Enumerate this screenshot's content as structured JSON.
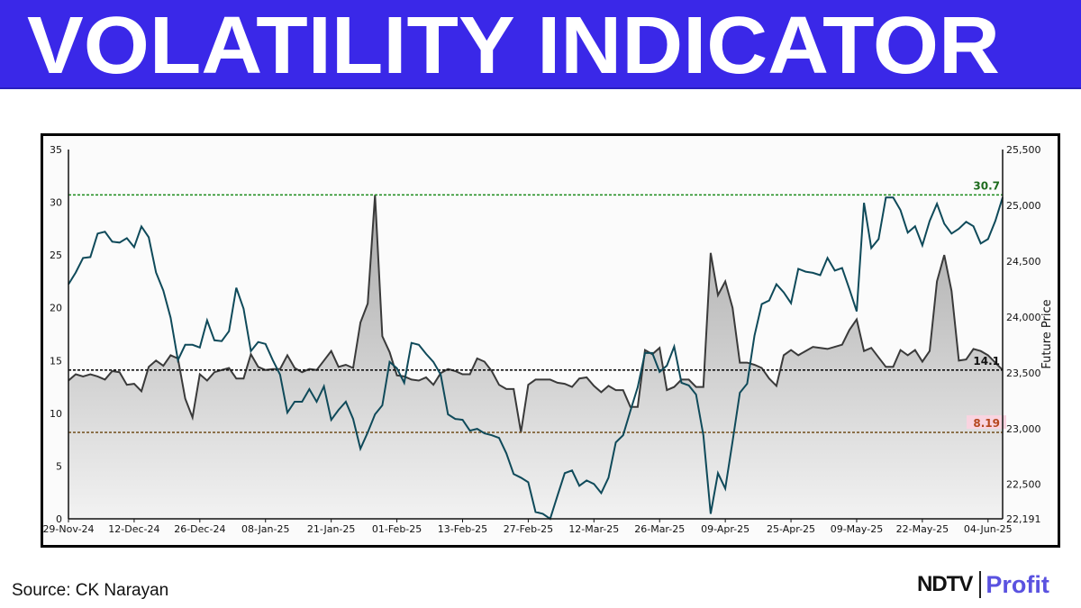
{
  "header": {
    "title": "VOLATILITY INDICATOR",
    "background": "#3a28e8"
  },
  "footer": {
    "source": "Source: CK Narayan",
    "logo": {
      "ndtv": "NDTV",
      "profit": "Profit"
    }
  },
  "chart_data": {
    "type": "line",
    "title": "",
    "xlabel": "",
    "ylabel_left": "",
    "ylabel_right": "Future Price",
    "x_ticks": [
      "29-Nov-24",
      "12-Dec-24",
      "26-Dec-24",
      "08-Jan-25",
      "21-Jan-25",
      "01-Feb-25",
      "13-Feb-25",
      "27-Feb-25",
      "12-Mar-25",
      "26-Mar-25",
      "09-Apr-25",
      "25-Apr-25",
      "09-May-25",
      "22-May-25",
      "04-Jun-25"
    ],
    "x_tick_every_sessions": 9,
    "y_left": {
      "range": [
        0,
        35
      ],
      "ticks": [
        0,
        5,
        10,
        15,
        20,
        25,
        30,
        35
      ]
    },
    "y_right": {
      "range": [
        22191,
        25500
      ],
      "ticks": [
        22191,
        22500,
        23000,
        23500,
        24000,
        24500,
        25000,
        25500
      ],
      "tick_labels": [
        "22,191",
        "22,500",
        "23,000",
        "23,500",
        "24,000",
        "24,500",
        "25,000",
        "25,500"
      ]
    },
    "grid": false,
    "series": [
      {
        "axis": "left",
        "style": "area",
        "color": "#3a3a3a",
        "fill": "gray-gradient",
        "values": [
          13.1,
          13.7,
          13.5,
          13.7,
          13.5,
          13.2,
          14.0,
          13.9,
          12.7,
          12.8,
          12.1,
          14.4,
          15.0,
          14.5,
          15.5,
          15.2,
          11.4,
          9.6,
          13.7,
          13.1,
          13.9,
          14.1,
          14.3,
          13.3,
          13.3,
          15.6,
          14.4,
          14.1,
          14.2,
          14.2,
          15.5,
          14.3,
          13.9,
          14.2,
          14.1,
          15.0,
          15.9,
          14.4,
          14.6,
          14.3,
          18.6,
          20.4,
          30.7,
          17.3,
          15.8,
          13.6,
          13.5,
          13.2,
          13.1,
          13.4,
          12.7,
          13.8,
          14.2,
          14.0,
          13.7,
          13.7,
          15.2,
          14.9,
          14.0,
          12.7,
          12.3,
          12.3,
          8.2,
          12.7,
          13.2,
          13.2,
          13.2,
          12.9,
          12.8,
          12.5,
          13.3,
          13.4,
          12.6,
          12.0,
          12.6,
          12.2,
          12.2,
          10.6,
          10.6,
          16.0,
          15.6,
          16.2,
          12.2,
          12.5,
          13.2,
          13.2,
          12.5,
          12.5,
          25.2,
          21.2,
          22.5,
          20.0,
          14.8,
          14.8,
          14.6,
          14.3,
          13.3,
          12.6,
          15.5,
          16.0,
          15.5,
          15.9,
          16.3,
          16.2,
          16.1,
          16.3,
          16.5,
          17.9,
          18.9,
          15.9,
          16.2,
          15.3,
          14.4,
          14.4,
          16.0,
          15.5,
          16.0,
          14.9,
          15.9,
          22.5,
          25.0,
          21.6,
          15.0,
          15.1,
          16.1,
          15.9,
          15.5,
          14.8,
          14.1
        ]
      },
      {
        "axis": "right",
        "style": "line",
        "color": "#0f4a5a",
        "values": [
          24293,
          24398,
          24528,
          24536,
          24747,
          24763,
          24674,
          24666,
          24706,
          24625,
          24811,
          24714,
          24398,
          24236,
          23993,
          23613,
          23750,
          23750,
          23726,
          23969,
          23791,
          23783,
          23872,
          24261,
          24074,
          23694,
          23775,
          23758,
          23613,
          23483,
          23143,
          23240,
          23240,
          23353,
          23240,
          23378,
          23078,
          23167,
          23240,
          23086,
          22819,
          22965,
          23127,
          23208,
          23597,
          23540,
          23410,
          23767,
          23750,
          23669,
          23597,
          23483,
          23127,
          23086,
          23078,
          22981,
          22997,
          22957,
          22940,
          22916,
          22778,
          22592,
          22560,
          22519,
          22252,
          22236,
          22191,
          22398,
          22600,
          22624,
          22487,
          22535,
          22503,
          22422,
          22560,
          22876,
          22940,
          23159,
          23370,
          23677,
          23677,
          23507,
          23564,
          23734,
          23410,
          23386,
          23305,
          22940,
          22236,
          22600,
          22462,
          22884,
          23321,
          23402,
          23831,
          24115,
          24147,
          24293,
          24220,
          24123,
          24431,
          24406,
          24395,
          24374,
          24528,
          24415,
          24439,
          24250,
          24050,
          25022,
          24617,
          24698,
          25071,
          25071,
          24957,
          24755,
          24812,
          24641,
          24860,
          25014,
          24836,
          24747,
          24790,
          24852,
          24812,
          24658,
          24698,
          24860,
          25071
        ]
      }
    ],
    "reference_lines": [
      {
        "axis": "left",
        "value": 30.7,
        "label": "30.7",
        "color": "#1a8a1a",
        "label_color": "#1d6b1d"
      },
      {
        "axis": "left",
        "value": 14.1,
        "label": "14.1",
        "color": "#111111",
        "label_color": "#111111"
      },
      {
        "axis": "left",
        "value": 8.19,
        "label": "8.19",
        "color": "#7a5a2a",
        "label_color": "#b5471e",
        "label_bg": "#f9d4e0"
      }
    ]
  }
}
